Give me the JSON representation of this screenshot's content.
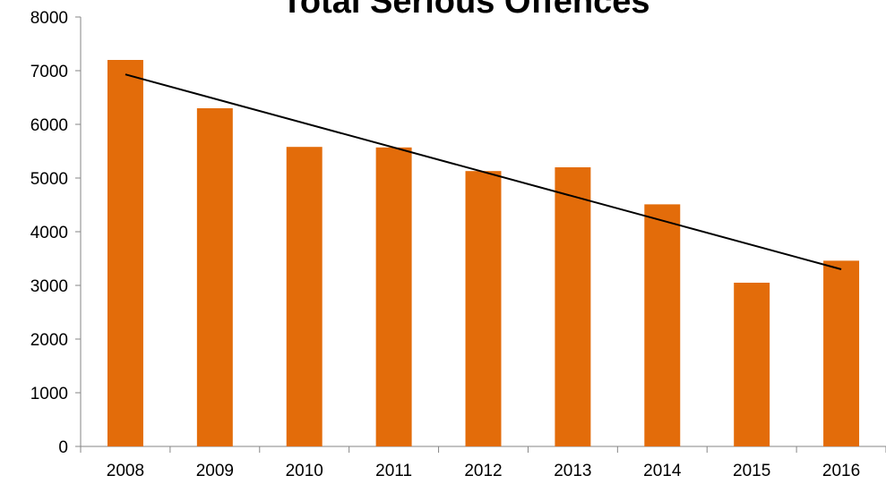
{
  "chart_data": {
    "type": "bar",
    "title": "Total Serious Offences",
    "xlabel": "",
    "ylabel": "",
    "categories": [
      "2008",
      "2009",
      "2010",
      "2011",
      "2012",
      "2013",
      "2014",
      "2015",
      "2016"
    ],
    "values": [
      7200,
      6300,
      5580,
      5570,
      5130,
      5200,
      4510,
      3050,
      3460
    ],
    "ylim": [
      0,
      8000
    ],
    "yticks": [
      0,
      1000,
      2000,
      3000,
      4000,
      5000,
      6000,
      7000,
      8000
    ],
    "trendline": {
      "type": "linear",
      "start": 6930,
      "end": 3300
    },
    "grid": false,
    "legend": "none",
    "colors": {
      "bar": "#E36C0A",
      "trendline": "#000000",
      "axis": "#868686"
    }
  }
}
